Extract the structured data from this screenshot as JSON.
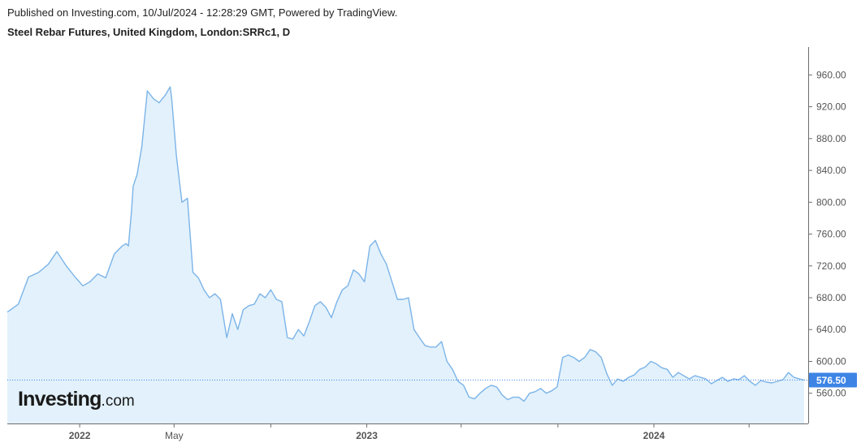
{
  "header": {
    "published": "Published on Investing.com, 10/Jul/2024 - 12:28:29 GMT, Powered by TradingView.",
    "symbol": "Steel Rebar Futures, United Kingdom, London:SRRc1, D"
  },
  "logo": {
    "main": "Investing",
    "dot": ".",
    "tld": "com"
  },
  "colors": {
    "line": "#7cb4e8",
    "fill": "#e2f1fb",
    "last_badge": "#3d84e5",
    "last_line": "#3d84e5",
    "axis": "#6e6e6e"
  },
  "chart_data": {
    "type": "area",
    "title": "Steel Rebar Futures, United Kingdom, London:SRRc1, D",
    "x_tick_labels": [
      "2022",
      "May",
      "2023",
      "2024"
    ],
    "y_tick_labels": [
      "560.00",
      "600.00",
      "640.00",
      "680.00",
      "720.00",
      "760.00",
      "800.00",
      "840.00",
      "880.00",
      "920.00",
      "960.00"
    ],
    "ylim": [
      522,
      995
    ],
    "last_value": 576.5,
    "last_value_label": "576.50",
    "series": [
      {
        "x": [
          "2021-10-01",
          "2021-10-15",
          "2021-10-28",
          "2021-11-10",
          "2021-11-22",
          "2021-12-03",
          "2021-12-15",
          "2021-12-27",
          "2022-01-05",
          "2022-01-14",
          "2022-01-24",
          "2022-02-03",
          "2022-02-14",
          "2022-02-24",
          "2022-03-01",
          "2022-03-04",
          "2022-03-08",
          "2022-03-10",
          "2022-03-15",
          "2022-03-21",
          "2022-03-28",
          "2022-04-05",
          "2022-04-12",
          "2022-04-20",
          "2022-04-26",
          "2022-04-28",
          "2022-05-04",
          "2022-05-11",
          "2022-05-18",
          "2022-05-25",
          "2022-06-01",
          "2022-06-08",
          "2022-06-15",
          "2022-06-22",
          "2022-06-29",
          "2022-07-07",
          "2022-07-14",
          "2022-07-21",
          "2022-07-28",
          "2022-08-04",
          "2022-08-11",
          "2022-08-18",
          "2022-08-25",
          "2022-09-01",
          "2022-09-08",
          "2022-09-15",
          "2022-09-22",
          "2022-09-29",
          "2022-10-06",
          "2022-10-13",
          "2022-10-20",
          "2022-10-27",
          "2022-11-03",
          "2022-11-10",
          "2022-11-17",
          "2022-11-24",
          "2022-12-01",
          "2022-12-08",
          "2022-12-15",
          "2022-12-22",
          "2022-12-29",
          "2023-01-05",
          "2023-01-12",
          "2023-01-19",
          "2023-01-26",
          "2023-02-02",
          "2023-02-09",
          "2023-02-16",
          "2023-02-23",
          "2023-03-02",
          "2023-03-09",
          "2023-03-16",
          "2023-03-23",
          "2023-03-30",
          "2023-04-06",
          "2023-04-13",
          "2023-04-20",
          "2023-04-27",
          "2023-05-04",
          "2023-05-11",
          "2023-05-18",
          "2023-05-25",
          "2023-06-01",
          "2023-06-08",
          "2023-06-15",
          "2023-06-22",
          "2023-06-29",
          "2023-07-06",
          "2023-07-13",
          "2023-07-20",
          "2023-07-27",
          "2023-08-03",
          "2023-08-10",
          "2023-08-17",
          "2023-08-24",
          "2023-08-31",
          "2023-09-07",
          "2023-09-14",
          "2023-09-21",
          "2023-09-28",
          "2023-10-05",
          "2023-10-12",
          "2023-10-19",
          "2023-10-26",
          "2023-11-02",
          "2023-11-09",
          "2023-11-16",
          "2023-11-23",
          "2023-11-30",
          "2023-12-07",
          "2023-12-14",
          "2023-12-21",
          "2023-12-28",
          "2024-01-04",
          "2024-01-11",
          "2024-01-18",
          "2024-01-25",
          "2024-02-01",
          "2024-02-08",
          "2024-02-15",
          "2024-02-22",
          "2024-02-29",
          "2024-03-07",
          "2024-03-14",
          "2024-03-21",
          "2024-03-28",
          "2024-04-04",
          "2024-04-11",
          "2024-04-18",
          "2024-04-25",
          "2024-05-02",
          "2024-05-09",
          "2024-05-16",
          "2024-05-23",
          "2024-05-30",
          "2024-06-06",
          "2024-06-13",
          "2024-06-20",
          "2024-06-27",
          "2024-07-04",
          "2024-07-10"
        ],
        "values": [
          662,
          672,
          706,
          712,
          722,
          738,
          720,
          705,
          695,
          700,
          710,
          705,
          735,
          745,
          748,
          745,
          790,
          820,
          835,
          870,
          940,
          930,
          925,
          935,
          945,
          930,
          858,
          800,
          805,
          712,
          705,
          690,
          680,
          685,
          678,
          630,
          660,
          640,
          665,
          670,
          672,
          685,
          680,
          690,
          678,
          675,
          630,
          628,
          640,
          632,
          650,
          670,
          675,
          668,
          655,
          675,
          690,
          695,
          715,
          710,
          700,
          745,
          752,
          735,
          722,
          700,
          678,
          678,
          680,
          640,
          630,
          620,
          618,
          618,
          625,
          600,
          590,
          575,
          570,
          555,
          553,
          560,
          566,
          570,
          568,
          558,
          552,
          555,
          555,
          550,
          560,
          562,
          566,
          560,
          563,
          568,
          605,
          608,
          605,
          600,
          605,
          615,
          612,
          605,
          585,
          570,
          578,
          575,
          580,
          583,
          590,
          593,
          600,
          597,
          592,
          590,
          580,
          586,
          582,
          578,
          582,
          580,
          578,
          572,
          576,
          580,
          575,
          578,
          577,
          582,
          575,
          570,
          576,
          574,
          573,
          575,
          577,
          586,
          580,
          578,
          576.5
        ]
      }
    ]
  }
}
